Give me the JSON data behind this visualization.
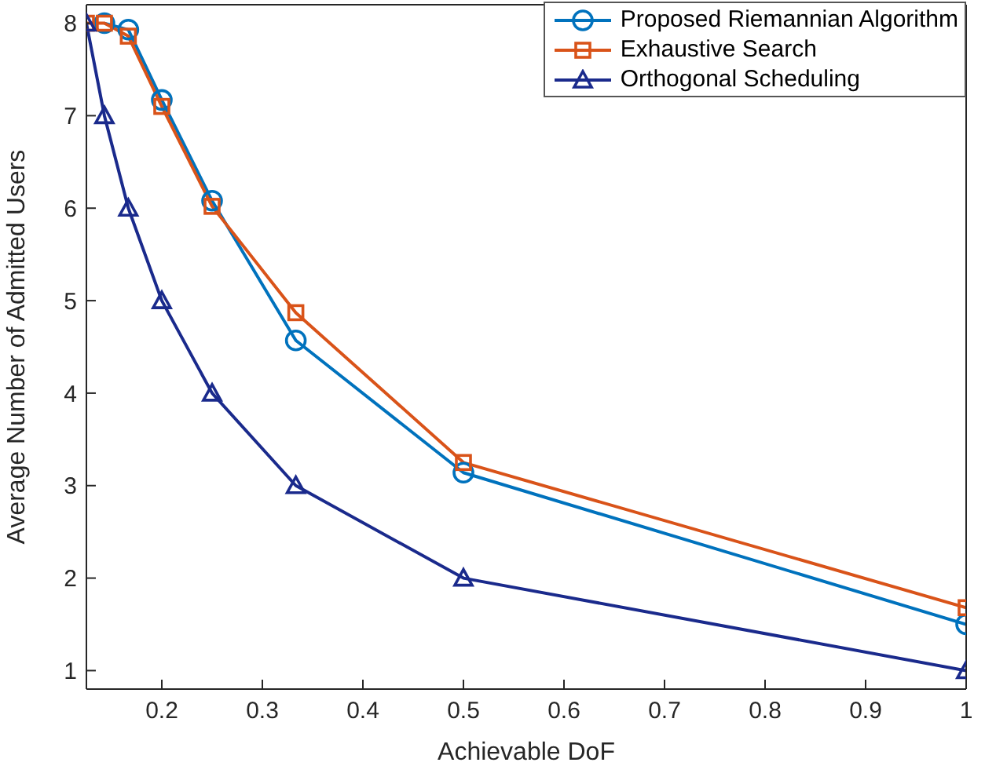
{
  "chart_data": {
    "type": "line",
    "xlabel": "Achievable DoF",
    "ylabel": "Average Number of Admitted Users",
    "x": [
      0.125,
      0.1429,
      0.1667,
      0.2,
      0.25,
      0.3333,
      0.5,
      1
    ],
    "series": [
      {
        "name": "Proposed Riemannian Algorithm",
        "color": "#0072bd",
        "marker": "circle",
        "values": [
          null,
          8,
          7.93,
          7.17,
          6.08,
          4.57,
          3.14,
          1.5
        ]
      },
      {
        "name": "Exhaustive Search",
        "color": "#d95319",
        "marker": "square",
        "values": [
          8,
          8,
          7.86,
          7.1,
          6.02,
          4.87,
          3.25,
          1.68
        ]
      },
      {
        "name": "Orthogonal Scheduling",
        "color": "#1a2a8c",
        "marker": "triangle",
        "values": [
          8,
          7,
          6,
          5,
          4,
          3,
          2,
          1
        ]
      }
    ],
    "xlim": [
      0.125,
      1
    ],
    "xticks": [
      0.2,
      0.3,
      0.4,
      0.5,
      0.6,
      0.7,
      0.8,
      0.9,
      1
    ],
    "ylim": [
      0.8,
      8.2
    ],
    "yticks": [
      1,
      2,
      3,
      4,
      5,
      6,
      7,
      8
    ],
    "grid": false,
    "legend": "top right",
    "line_style": "solid"
  }
}
